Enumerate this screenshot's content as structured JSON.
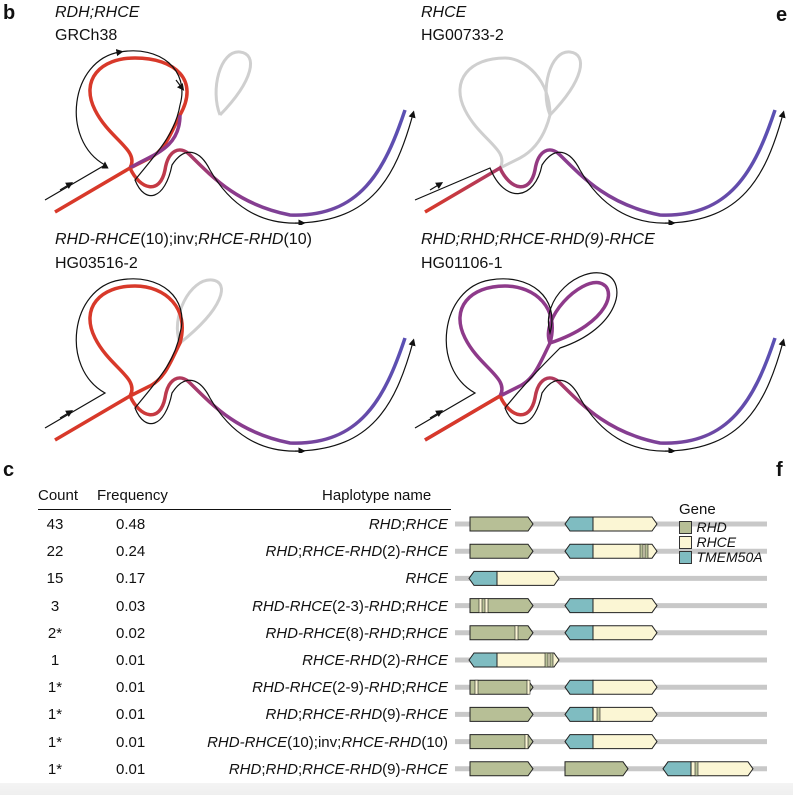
{
  "panels": {
    "b": "b",
    "e": "e",
    "c": "c",
    "f": "f"
  },
  "graphs": [
    {
      "name": "RDH;RHCE",
      "sample": "GRCh38"
    },
    {
      "name": "RHCE",
      "sample": "HG00733-2"
    },
    {
      "name": "RHD-RHCE(10);inv;RHCE-RHD(10)",
      "sample": "HG03516-2"
    },
    {
      "name": "RHD;RHD;RHCE-RHD(9)-RHCE",
      "sample": "HG01106-1"
    }
  ],
  "table": {
    "headers": {
      "count": "Count",
      "frequency": "Frequency",
      "haplotype": "Haplotype name"
    },
    "rows": [
      {
        "count": "43",
        "frequency": "0.48",
        "name": "RHD;RHCE"
      },
      {
        "count": "22",
        "frequency": "0.24",
        "name": "RHD;RHCE-RHD(2)-RHCE"
      },
      {
        "count": "15",
        "frequency": "0.17",
        "name": "RHCE"
      },
      {
        "count": "3",
        "frequency": "0.03",
        "name": "RHD-RHCE(2-3)-RHD;RHCE"
      },
      {
        "count": "2*",
        "frequency": "0.02",
        "name": "RHD-RHCE(8)-RHD;RHCE"
      },
      {
        "count": "1",
        "frequency": "0.01",
        "name": "RHCE-RHD(2)-RHCE"
      },
      {
        "count": "1*",
        "frequency": "0.01",
        "name": "RHD-RHCE(2-9)-RHD;RHCE"
      },
      {
        "count": "1*",
        "frequency": "0.01",
        "name": "RHD;RHCE-RHD(9)-RHCE"
      },
      {
        "count": "1*",
        "frequency": "0.01",
        "name": "RHD-RHCE(10);inv;RHCE-RHD(10)"
      },
      {
        "count": "1*",
        "frequency": "0.01",
        "name": "RHD;RHD;RHCE-RHD(9)-RHCE"
      }
    ]
  },
  "legend": {
    "title": "Gene",
    "items": [
      {
        "label": "RHD",
        "color": "#b7bf96"
      },
      {
        "label": "RHCE",
        "color": "#fbf6d4"
      },
      {
        "label": "TMEM50A",
        "color": "#7fbcc1"
      }
    ]
  },
  "colors": {
    "rhd": "#b7bf96",
    "rhce": "#fbf6d4",
    "tmem": "#7fbcc1",
    "track": "#c8c8c8",
    "grey_loop": "#cfcfcf"
  }
}
